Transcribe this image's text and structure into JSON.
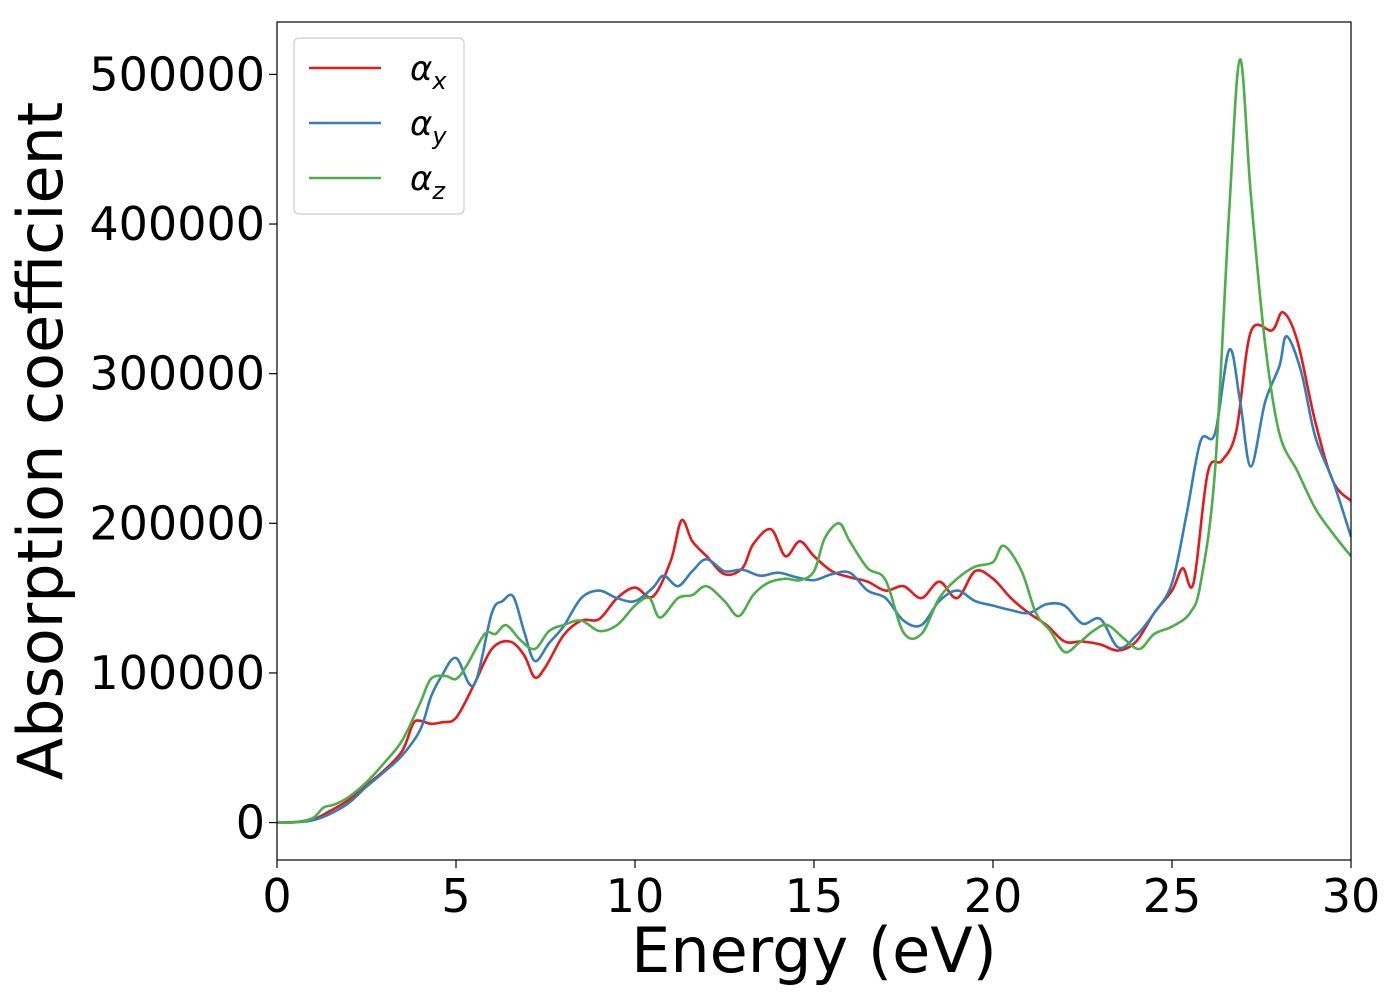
{
  "chart_data": {
    "type": "line",
    "xlabel": "Energy (eV)",
    "ylabel": "Absorption coefficient",
    "xlim": [
      0,
      30
    ],
    "ylim": [
      -25000,
      535000
    ],
    "xticks": [
      0,
      5,
      10,
      15,
      20,
      25,
      30
    ],
    "yticks": [
      0,
      100000,
      200000,
      300000,
      400000,
      500000
    ],
    "grid": false,
    "legend_position": "top-left",
    "series": [
      {
        "name": "αx",
        "symbol": "α",
        "subscript": "x",
        "color": "#e41a1c",
        "points": [
          [
            0,
            0
          ],
          [
            0.5,
            300
          ],
          [
            1,
            2000
          ],
          [
            1.5,
            8000
          ],
          [
            2,
            15000
          ],
          [
            2.5,
            25000
          ],
          [
            3,
            35000
          ],
          [
            3.5,
            48000
          ],
          [
            3.8,
            66000
          ],
          [
            4,
            68000
          ],
          [
            4.3,
            66000
          ],
          [
            4.6,
            67000
          ],
          [
            5,
            70000
          ],
          [
            5.5,
            92000
          ],
          [
            6,
            116000
          ],
          [
            6.5,
            121000
          ],
          [
            6.9,
            112000
          ],
          [
            7.2,
            97000
          ],
          [
            7.5,
            104000
          ],
          [
            8,
            125000
          ],
          [
            8.5,
            135000
          ],
          [
            9,
            136000
          ],
          [
            9.5,
            150000
          ],
          [
            10,
            157000
          ],
          [
            10.5,
            151000
          ],
          [
            11,
            175000
          ],
          [
            11.3,
            202000
          ],
          [
            11.6,
            188000
          ],
          [
            12,
            178000
          ],
          [
            12.5,
            166000
          ],
          [
            13,
            170000
          ],
          [
            13.3,
            186000
          ],
          [
            13.8,
            196000
          ],
          [
            14.2,
            178000
          ],
          [
            14.6,
            188000
          ],
          [
            15,
            178000
          ],
          [
            15.5,
            168000
          ],
          [
            16,
            164000
          ],
          [
            16.5,
            161000
          ],
          [
            17,
            155000
          ],
          [
            17.5,
            158000
          ],
          [
            18,
            150000
          ],
          [
            18.5,
            161000
          ],
          [
            19,
            150000
          ],
          [
            19.5,
            168000
          ],
          [
            20,
            163000
          ],
          [
            20.5,
            150000
          ],
          [
            21,
            140000
          ],
          [
            21.5,
            132000
          ],
          [
            22,
            121000
          ],
          [
            22.5,
            121000
          ],
          [
            23,
            119000
          ],
          [
            23.5,
            115000
          ],
          [
            24,
            121000
          ],
          [
            24.5,
            140000
          ],
          [
            25,
            155000
          ],
          [
            25.3,
            170000
          ],
          [
            25.6,
            160000
          ],
          [
            26,
            234000
          ],
          [
            26.4,
            242000
          ],
          [
            26.8,
            262000
          ],
          [
            27.2,
            328000
          ],
          [
            27.8,
            329000
          ],
          [
            28.1,
            341000
          ],
          [
            28.5,
            322000
          ],
          [
            29,
            268000
          ],
          [
            29.5,
            228000
          ],
          [
            30,
            215000
          ]
        ]
      },
      {
        "name": "αy",
        "symbol": "α",
        "subscript": "y",
        "color": "#377eb8",
        "points": [
          [
            0,
            0
          ],
          [
            0.5,
            200
          ],
          [
            1,
            1500
          ],
          [
            1.5,
            6000
          ],
          [
            2,
            13000
          ],
          [
            2.5,
            24000
          ],
          [
            3,
            34000
          ],
          [
            3.5,
            45000
          ],
          [
            4,
            62000
          ],
          [
            4.3,
            84000
          ],
          [
            4.6,
            98000
          ],
          [
            5,
            110000
          ],
          [
            5.5,
            92000
          ],
          [
            6,
            140000
          ],
          [
            6.3,
            148000
          ],
          [
            6.6,
            151000
          ],
          [
            6.9,
            128000
          ],
          [
            7.2,
            108000
          ],
          [
            7.6,
            120000
          ],
          [
            8,
            131000
          ],
          [
            8.5,
            150000
          ],
          [
            9,
            155000
          ],
          [
            9.5,
            150000
          ],
          [
            10,
            148000
          ],
          [
            10.5,
            157000
          ],
          [
            10.8,
            165000
          ],
          [
            11.2,
            158000
          ],
          [
            11.6,
            168000
          ],
          [
            12,
            176000
          ],
          [
            12.5,
            168000
          ],
          [
            13,
            169000
          ],
          [
            13.5,
            165000
          ],
          [
            14,
            167000
          ],
          [
            14.5,
            164000
          ],
          [
            15,
            162000
          ],
          [
            15.5,
            166000
          ],
          [
            16,
            167000
          ],
          [
            16.5,
            155000
          ],
          [
            17,
            150000
          ],
          [
            17.5,
            135000
          ],
          [
            18,
            132000
          ],
          [
            18.5,
            148000
          ],
          [
            19,
            155000
          ],
          [
            19.5,
            148000
          ],
          [
            20,
            145000
          ],
          [
            20.5,
            142000
          ],
          [
            21,
            140000
          ],
          [
            21.5,
            146000
          ],
          [
            22,
            145000
          ],
          [
            22.5,
            133000
          ],
          [
            23,
            136000
          ],
          [
            23.5,
            117000
          ],
          [
            24,
            125000
          ],
          [
            24.5,
            140000
          ],
          [
            25,
            160000
          ],
          [
            25.4,
            205000
          ],
          [
            25.8,
            255000
          ],
          [
            26.2,
            260000
          ],
          [
            26.6,
            316000
          ],
          [
            26.9,
            282000
          ],
          [
            27.2,
            238000
          ],
          [
            27.6,
            281000
          ],
          [
            28,
            305000
          ],
          [
            28.2,
            325000
          ],
          [
            28.6,
            302000
          ],
          [
            29,
            258000
          ],
          [
            29.5,
            228000
          ],
          [
            30,
            191000
          ]
        ]
      },
      {
        "name": "αz",
        "symbol": "α",
        "subscript": "z",
        "color": "#4daf4a",
        "points": [
          [
            0,
            0
          ],
          [
            0.5,
            200
          ],
          [
            1,
            3000
          ],
          [
            1.3,
            10000
          ],
          [
            1.6,
            12000
          ],
          [
            2,
            17000
          ],
          [
            2.5,
            27000
          ],
          [
            3,
            40000
          ],
          [
            3.5,
            55000
          ],
          [
            4,
            80000
          ],
          [
            4.3,
            96000
          ],
          [
            4.7,
            98000
          ],
          [
            5,
            96000
          ],
          [
            5.3,
            105000
          ],
          [
            5.8,
            126000
          ],
          [
            6.1,
            126000
          ],
          [
            6.4,
            132000
          ],
          [
            6.8,
            122000
          ],
          [
            7.2,
            116000
          ],
          [
            7.6,
            128000
          ],
          [
            8,
            132000
          ],
          [
            8.5,
            135000
          ],
          [
            9,
            128000
          ],
          [
            9.5,
            132000
          ],
          [
            10,
            145000
          ],
          [
            10.4,
            150000
          ],
          [
            10.7,
            137000
          ],
          [
            11.2,
            150000
          ],
          [
            11.6,
            152000
          ],
          [
            12,
            158000
          ],
          [
            12.5,
            148000
          ],
          [
            12.9,
            138000
          ],
          [
            13.3,
            152000
          ],
          [
            13.7,
            160000
          ],
          [
            14.2,
            163000
          ],
          [
            14.6,
            162000
          ],
          [
            15,
            168000
          ],
          [
            15.3,
            190000
          ],
          [
            15.7,
            200000
          ],
          [
            16,
            188000
          ],
          [
            16.5,
            170000
          ],
          [
            17,
            162000
          ],
          [
            17.5,
            127000
          ],
          [
            18,
            126000
          ],
          [
            18.5,
            150000
          ],
          [
            19,
            163000
          ],
          [
            19.5,
            171000
          ],
          [
            20,
            174000
          ],
          [
            20.3,
            185000
          ],
          [
            20.8,
            168000
          ],
          [
            21.2,
            140000
          ],
          [
            21.6,
            128000
          ],
          [
            22,
            114000
          ],
          [
            22.4,
            120000
          ],
          [
            22.8,
            128000
          ],
          [
            23.2,
            132000
          ],
          [
            23.7,
            122000
          ],
          [
            24.1,
            116000
          ],
          [
            24.5,
            126000
          ],
          [
            25,
            131000
          ],
          [
            25.5,
            140000
          ],
          [
            25.8,
            160000
          ],
          [
            26.2,
            235000
          ],
          [
            26.6,
            410000
          ],
          [
            26.9,
            510000
          ],
          [
            27.2,
            420000
          ],
          [
            27.6,
            320000
          ],
          [
            28,
            260000
          ],
          [
            28.5,
            235000
          ],
          [
            29,
            210000
          ],
          [
            29.5,
            193000
          ],
          [
            30,
            178000
          ]
        ]
      }
    ]
  }
}
